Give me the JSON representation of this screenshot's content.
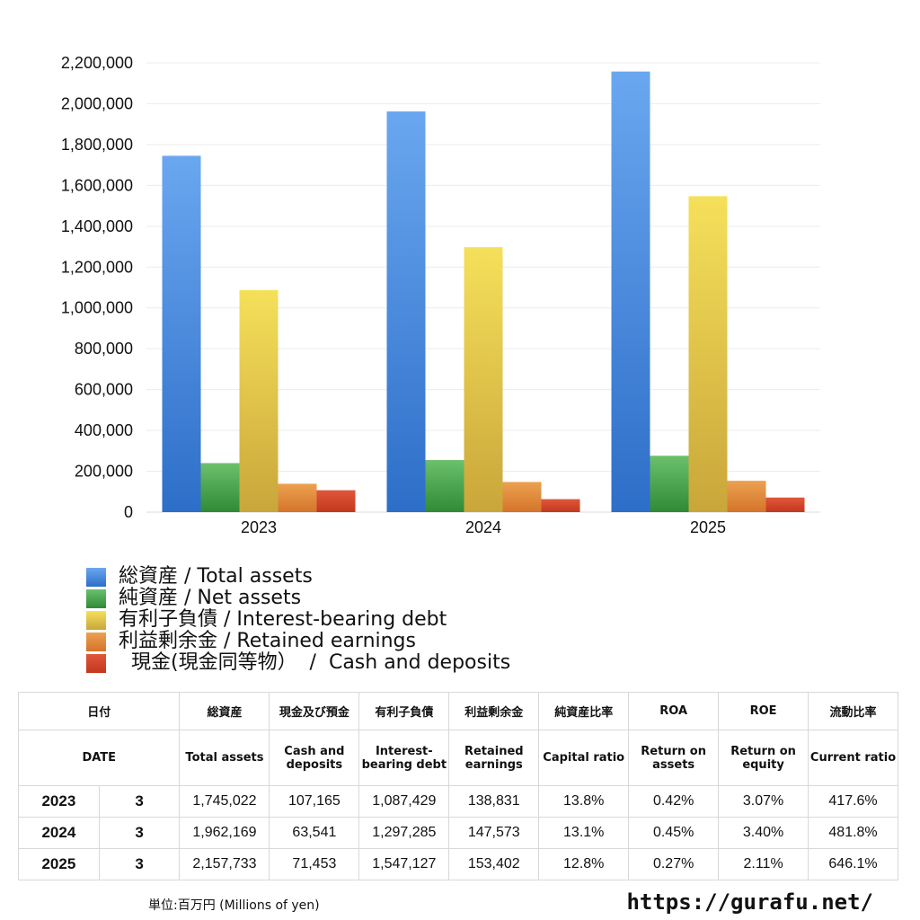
{
  "chart_data": {
    "type": "bar",
    "categories": [
      "2023",
      "2024",
      "2025"
    ],
    "series": [
      {
        "name": "総資産 / Total assets",
        "color": "#3f85de",
        "values": [
          1745022,
          1962169,
          2157733
        ]
      },
      {
        "name": "純資産 / Net assets",
        "color": "#4aa04a",
        "values": [
          240000,
          255000,
          276000
        ]
      },
      {
        "name": "有利子負債 / Interest-bearing debt",
        "color": "#e8cf4a",
        "values": [
          1087429,
          1297285,
          1547127
        ]
      },
      {
        "name": "利益剰余金 / Retained earnings",
        "color": "#e08a3a",
        "values": [
          138831,
          147573,
          153402
        ]
      },
      {
        "name": "  現金(現金同等物）  /  Cash and deposits",
        "color": "#d4452a",
        "values": [
          107165,
          63541,
          71453
        ]
      }
    ],
    "yticks": [
      "0",
      "200,000",
      "400,000",
      "600,000",
      "800,000",
      "1,000,000",
      "1,200,000",
      "1,400,000",
      "1,600,000",
      "1,800,000",
      "2,000,000",
      "2,200,000"
    ],
    "ylim": [
      0,
      2200000
    ],
    "grid": true,
    "legend_position": "bottom-left"
  },
  "table": {
    "header_jp": [
      "日付",
      "",
      "総資産",
      "現金及び預金",
      "有利子負債",
      "利益剰余金",
      "純資産比率",
      "ROA",
      "ROE",
      "流動比率"
    ],
    "header_en": [
      "DATE",
      "",
      "Total assets",
      "Cash and deposits",
      "Interest-bearing debt",
      "Retained earnings",
      "Capital ratio",
      "Return on assets",
      "Return on equity",
      "Current ratio"
    ],
    "rows": [
      [
        "2023",
        "3",
        "1,745,022",
        "107,165",
        "1,087,429",
        "138,831",
        "13.8%",
        "0.42%",
        "3.07%",
        "417.6%"
      ],
      [
        "2024",
        "3",
        "1,962,169",
        "63,541",
        "1,297,285",
        "147,573",
        "13.1%",
        "0.45%",
        "3.40%",
        "481.8%"
      ],
      [
        "2025",
        "3",
        "2,157,733",
        "71,453",
        "1,547,127",
        "153,402",
        "12.8%",
        "0.27%",
        "2.11%",
        "646.1%"
      ]
    ]
  },
  "footer": {
    "unit": "単位:百万円 (Millions of yen)",
    "url": "https://gurafu.net/"
  }
}
